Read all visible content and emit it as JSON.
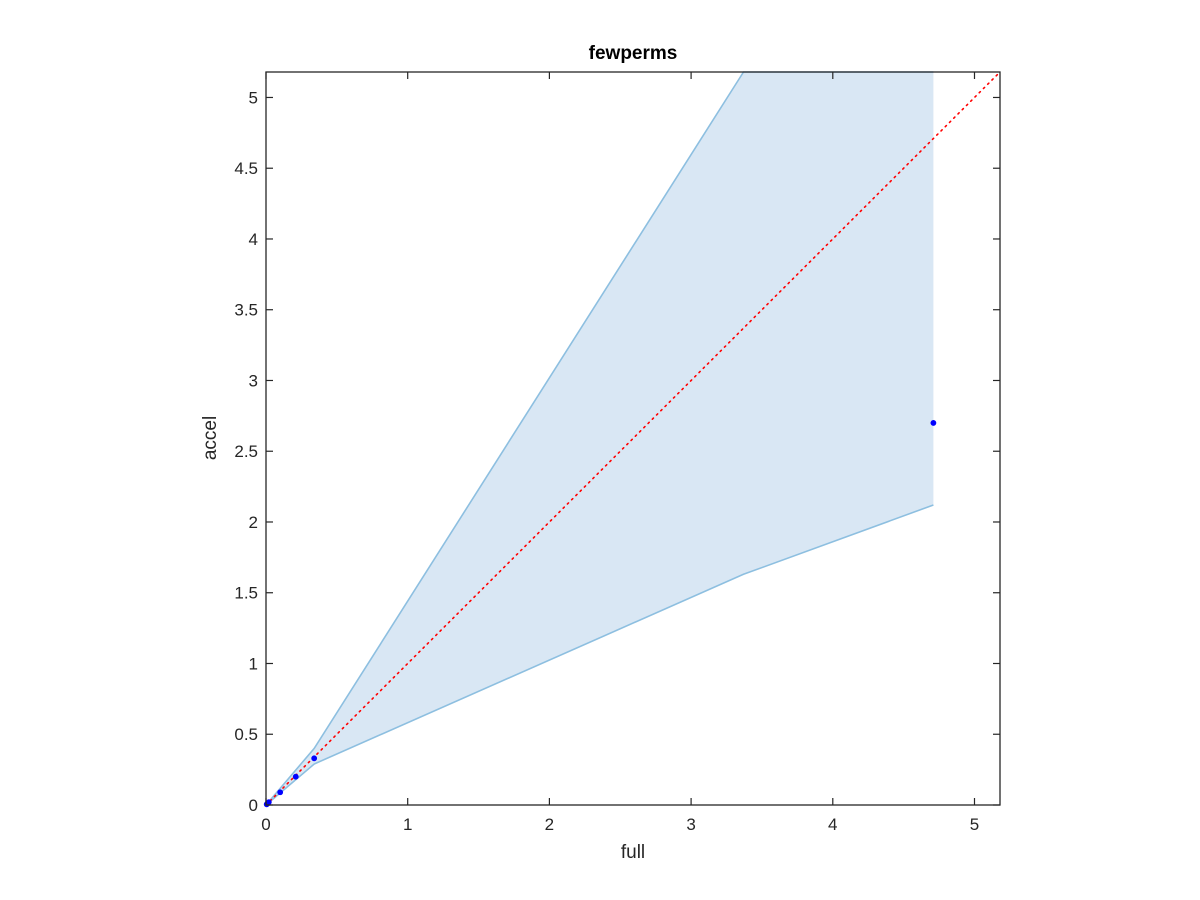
{
  "chart_data": {
    "type": "scatter",
    "title": "fewperms",
    "xlabel": "full",
    "ylabel": "accel",
    "xlim": [
      0,
      5.18
    ],
    "ylim": [
      0,
      5.18
    ],
    "grid": false,
    "legend": "none",
    "xticks": [
      0,
      1,
      2,
      3,
      4,
      5
    ],
    "xtick_labels": [
      "0",
      "1",
      "2",
      "3",
      "4",
      "5"
    ],
    "yticks": [
      0,
      0.5,
      1,
      1.5,
      2,
      2.5,
      3,
      3.5,
      4,
      4.5,
      5
    ],
    "ytick_labels": [
      "0",
      "0.5",
      "1",
      "1.5",
      "2",
      "2.5",
      "3",
      "3.5",
      "4",
      "4.5",
      "5"
    ],
    "points": {
      "x": [
        0.005,
        0.01,
        0.02,
        0.1,
        0.21,
        0.34,
        4.71
      ],
      "y": [
        0.005,
        0.01,
        0.02,
        0.09,
        0.2,
        0.33,
        2.7
      ]
    },
    "band": {
      "x": [
        0,
        0.34,
        3.37,
        4.71
      ],
      "upper": [
        0,
        0.4,
        5.18,
        5.18
      ],
      "lower": [
        0,
        0.29,
        1.63,
        2.12
      ]
    },
    "reference_line": {
      "x": [
        0,
        5.18
      ],
      "y": [
        0,
        5.18
      ]
    },
    "colors": {
      "points": "#0000ff",
      "band_fill": "#d9e7f4",
      "band_edge": "#8dbfe0",
      "reference_line": "#ff0000",
      "axes": "#262626"
    }
  }
}
